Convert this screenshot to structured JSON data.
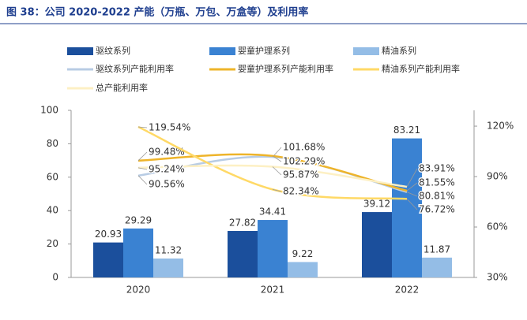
{
  "chart_data": {
    "type": "bar-line",
    "title": "图 38：公司 2020-2022 产能（万瓶、万包、万盒等）及利用率",
    "categories": [
      "2020",
      "2021",
      "2022"
    ],
    "ylim": [
      0,
      100
    ],
    "yticks": [
      0,
      20,
      40,
      60,
      80,
      100
    ],
    "y2lim": [
      30,
      129.4
    ],
    "y2ticks": [
      {
        "value": 30,
        "label": "30%"
      },
      {
        "value": 60,
        "label": "60%"
      },
      {
        "value": 90,
        "label": "90%"
      },
      {
        "value": 120,
        "label": "120%"
      }
    ],
    "series": [
      {
        "name": "驱纹系列",
        "type": "bar",
        "color": "#1b4f9c",
        "values": [
          20.93,
          27.82,
          39.12
        ]
      },
      {
        "name": "婴童护理系列",
        "type": "bar",
        "color": "#3a82d2",
        "values": [
          29.29,
          34.41,
          83.21
        ]
      },
      {
        "name": "精油系列",
        "type": "bar",
        "color": "#94bde6",
        "values": [
          11.32,
          9.22,
          11.87
        ]
      },
      {
        "name": "驱纹系列产能利用率",
        "type": "line",
        "axis": "y2",
        "color": "#b8cce4",
        "values": [
          90.56,
          101.68,
          80.81
        ],
        "value_labels": [
          "90.56%",
          "101.68%",
          "80.81%"
        ]
      },
      {
        "name": "婴童护理系列产能利用率",
        "type": "line",
        "axis": "y2",
        "color": "#eeb42a",
        "values": [
          99.48,
          102.29,
          81.55
        ],
        "value_labels": [
          "99.48%",
          "102.29%",
          "81.55%"
        ]
      },
      {
        "name": "精油系列产能利用率",
        "type": "line",
        "axis": "y2",
        "color": "#ffd966",
        "values": [
          119.54,
          82.34,
          76.72
        ],
        "value_labels": [
          "119.54%",
          "82.34%",
          "76.72%"
        ]
      },
      {
        "name": "总产能利用率",
        "type": "line",
        "axis": "y2",
        "color": "#fdf0c4",
        "values": [
          95.24,
          95.87,
          83.91
        ],
        "value_labels": [
          "95.24%",
          "95.87%",
          "83.91%"
        ]
      }
    ]
  }
}
